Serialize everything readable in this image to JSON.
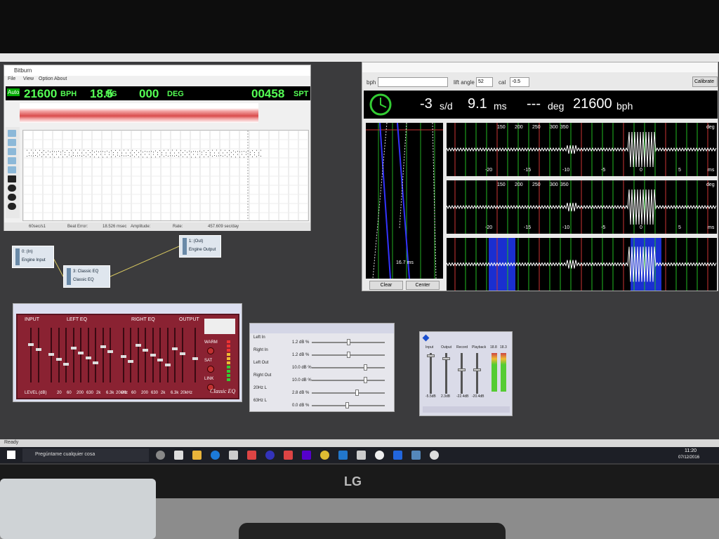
{
  "app": {
    "status": "Ready"
  },
  "bitburn": {
    "title": "Bitburn",
    "menu": [
      "File",
      "View",
      "Option",
      "About"
    ],
    "mode": "Auto",
    "readouts": [
      "21600",
      "BPH",
      "18.5",
      "MS",
      "000",
      "DEG",
      "00458",
      "SPT"
    ],
    "status": [
      "60sec/s1",
      "Beat Error:",
      "18.526 msec",
      "Amplitude:",
      "Rate:",
      "457.609 sec/day"
    ]
  },
  "graph_nodes": [
    {
      "id": "0: (In)",
      "label": "Engine Input"
    },
    {
      "id": "3: Classic EQ",
      "label": "Classic EQ"
    },
    {
      "id": "1: (Out)",
      "label": "Engine Output"
    }
  ],
  "timegrapher": {
    "bph_label": "bph",
    "lift_angle_label": "lift angle",
    "lift_angle": "52",
    "cal_label": "cal",
    "cal": "-0.5",
    "calibrate": "Calibrate",
    "rate": "-3",
    "rate_unit": "s/d",
    "beat_error": "9.1",
    "beat_error_unit": "ms",
    "amplitude": "---",
    "amplitude_unit": "deg",
    "bph": "21600",
    "bph_unit": "bph",
    "deg_ticks": [
      "150",
      "200",
      "250",
      "300",
      "350"
    ],
    "deg_unit": "deg",
    "ms_ticks": [
      "-20",
      "-15",
      "-10",
      "-5",
      "0",
      "5"
    ],
    "ms_unit": "ms",
    "span": "16.7 ms",
    "buttons": [
      "Clear",
      "Center"
    ]
  },
  "classic_eq": {
    "sections": [
      "INPUT",
      "LEFT EQ",
      "RIGHT EQ",
      "OUTPUT"
    ],
    "knobs": [
      "WARM",
      "SAT",
      "LINK"
    ],
    "brand": "Classic EQ",
    "level": "LEVEL (dB)",
    "freqs": [
      "20",
      "60",
      "200",
      "630",
      "2k",
      "6.3k",
      "20kHz"
    ]
  },
  "parameters": {
    "rows": [
      [
        "Left In",
        "1.2 dB %"
      ],
      [
        "Right In",
        "1.2 dB %"
      ],
      [
        "Left Out",
        "10.0 dB %"
      ],
      [
        "Right Out",
        "10.0 dB %"
      ],
      [
        "20Hz L",
        "2.8 dB %"
      ],
      [
        "63Hz L",
        "0.0 dB %"
      ]
    ]
  },
  "mixer": {
    "channels": [
      "Input",
      "Output",
      "Record",
      "Playback"
    ],
    "meters": [
      "18.8",
      "18.3"
    ],
    "levels": [
      "-5.5dB",
      "2.3dB",
      "-22.4dB",
      "-20.4dB"
    ]
  },
  "taskbar": {
    "search": "Pregúntame cualquier cosa",
    "time": "11:20",
    "date": "07/12/2016"
  },
  "monitor": {
    "brand": "LG"
  }
}
